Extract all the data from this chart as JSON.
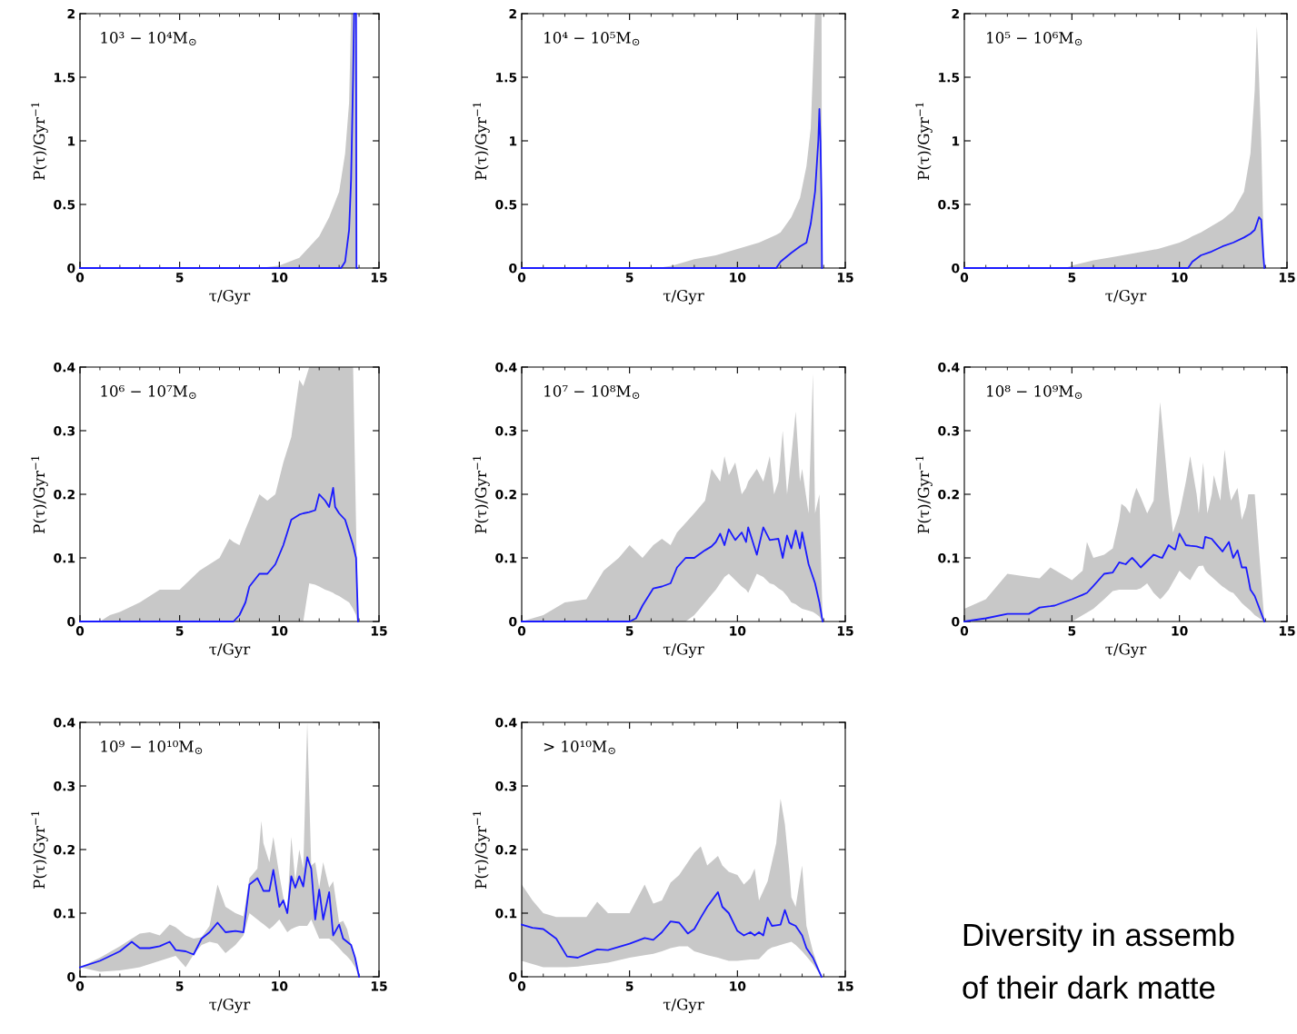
{
  "chart_data": [
    {
      "type": "line",
      "title": "10³ − 10⁴M$_{⊙}$",
      "xlabel": "τ/Gyr",
      "ylabel": "P(τ)/Gyr$^{−1}$",
      "xlim": [
        0,
        15
      ],
      "ylim": [
        0,
        2
      ],
      "xticks": [
        0,
        5,
        10,
        15
      ],
      "yticks": [
        0,
        0.5,
        1,
        1.5,
        2
      ],
      "grid": false,
      "legend": false,
      "series": [
        {
          "type": "line",
          "color": "#1a1aff",
          "x": [
            0,
            9,
            10,
            11,
            12,
            12.5,
            13,
            13.1,
            13.3,
            13.5,
            13.6,
            13.7,
            13.75,
            13.85,
            13.87,
            13.9
          ],
          "values": [
            0,
            0,
            0,
            0,
            0,
            0,
            0,
            0,
            0.05,
            0.3,
            0.7,
            1.5,
            2,
            2,
            0,
            0
          ],
          "lower": [
            0,
            0,
            0,
            0,
            0,
            0,
            0,
            0,
            0,
            0,
            0,
            0,
            0,
            0,
            0,
            0
          ],
          "upper": [
            0,
            0,
            0.02,
            0.08,
            0.25,
            0.4,
            0.6,
            0.7,
            0.9,
            1.3,
            2,
            2,
            2,
            2,
            0,
            0
          ]
        }
      ]
    },
    {
      "type": "line",
      "title": "10⁴ − 10⁵M$_{⊙}$",
      "xlabel": "τ/Gyr",
      "ylabel": "P(τ)/Gyr$^{−1}$",
      "xlim": [
        0,
        15
      ],
      "ylim": [
        0,
        2
      ],
      "xticks": [
        0,
        5,
        10,
        15
      ],
      "yticks": [
        0,
        0.5,
        1,
        1.5,
        2
      ],
      "grid": false,
      "legend": false,
      "series": [
        {
          "type": "line",
          "color": "#1a1aff",
          "x": [
            0,
            6.3,
            7,
            8,
            9,
            10,
            11,
            11.8,
            12,
            12.5,
            12.9,
            13.2,
            13.4,
            13.6,
            13.75,
            13.8,
            13.85,
            13.9,
            13.92
          ],
          "values": [
            0,
            0,
            0,
            0,
            0,
            0,
            0,
            0,
            0.05,
            0.12,
            0.17,
            0.2,
            0.35,
            0.6,
            1.0,
            1.25,
            1.0,
            0.5,
            0
          ],
          "lower": [
            0,
            0,
            0,
            0,
            0,
            0,
            0,
            0,
            0,
            0,
            0,
            0,
            0,
            0,
            0,
            0,
            0,
            0,
            0
          ],
          "upper": [
            0,
            0,
            0.02,
            0.07,
            0.1,
            0.15,
            0.2,
            0.26,
            0.28,
            0.4,
            0.55,
            0.8,
            1.1,
            2,
            2,
            2,
            2,
            2,
            0
          ]
        }
      ]
    },
    {
      "type": "line",
      "title": "10⁵ − 10⁶M$_{⊙}$",
      "xlabel": "τ/Gyr",
      "ylabel": "P(τ)/Gyr$^{−1}$",
      "xlim": [
        0,
        15
      ],
      "ylim": [
        0,
        2
      ],
      "xticks": [
        0,
        5,
        10,
        15
      ],
      "yticks": [
        0,
        0.5,
        1,
        1.5,
        2
      ],
      "grid": false,
      "legend": false,
      "series": [
        {
          "type": "line",
          "color": "#1a1aff",
          "x": [
            0,
            4.7,
            5,
            6,
            7,
            8,
            9,
            10,
            10.4,
            10.6,
            11,
            11.5,
            12,
            12.5,
            13,
            13.3,
            13.5,
            13.6,
            13.7,
            13.8,
            13.9,
            13.95
          ],
          "values": [
            0,
            0,
            0,
            0,
            0,
            0,
            0,
            0,
            0,
            0.05,
            0.1,
            0.13,
            0.17,
            0.2,
            0.24,
            0.27,
            0.3,
            0.35,
            0.4,
            0.38,
            0.1,
            0
          ],
          "lower": [
            0,
            0,
            0,
            0,
            0,
            0,
            0,
            0,
            0,
            0,
            0,
            0,
            0,
            0,
            0,
            0,
            0,
            0,
            0,
            0,
            0,
            0
          ],
          "upper": [
            0,
            0,
            0.02,
            0.06,
            0.09,
            0.12,
            0.15,
            0.2,
            0.23,
            0.25,
            0.28,
            0.33,
            0.38,
            0.45,
            0.6,
            0.9,
            1.4,
            1.9,
            1.5,
            1.0,
            0.3,
            0
          ]
        }
      ]
    },
    {
      "type": "line",
      "title": "10⁶ − 10⁷M$_{⊙}$",
      "xlabel": "τ/Gyr",
      "ylabel": "P(τ)/Gyr$^{−1}$",
      "xlim": [
        0,
        15
      ],
      "ylim": [
        0,
        0.4
      ],
      "xticks": [
        0,
        5,
        10,
        15
      ],
      "yticks": [
        0,
        0.1,
        0.2,
        0.3,
        0.4
      ],
      "grid": false,
      "legend": false,
      "series": [
        {
          "type": "line",
          "color": "#1a1aff",
          "x": [
            0,
            1,
            1.5,
            2,
            3,
            4,
            5,
            6,
            7,
            7.5,
            7.7,
            8,
            8.3,
            8.5,
            9,
            9.4,
            9.8,
            10.2,
            10.6,
            11,
            11.2,
            11.5,
            11.8,
            12,
            12.3,
            12.5,
            12.7,
            12.8,
            13,
            13.3,
            13.5,
            13.7,
            13.85,
            13.9,
            13.95
          ],
          "values": [
            0,
            0,
            0,
            0,
            0,
            0,
            0,
            0,
            0,
            0,
            0,
            0.01,
            0.03,
            0.055,
            0.075,
            0.075,
            0.09,
            0.12,
            0.16,
            0.168,
            0.17,
            0.172,
            0.175,
            0.2,
            0.19,
            0.18,
            0.21,
            0.18,
            0.17,
            0.16,
            0.14,
            0.12,
            0.1,
            0.05,
            0
          ],
          "lower": [
            0,
            0,
            0,
            0,
            0,
            0,
            0,
            0,
            0,
            0,
            0,
            0,
            0,
            0,
            0,
            0,
            0,
            0,
            0,
            0,
            0,
            0.06,
            0.058,
            0.055,
            0.05,
            0.048,
            0.045,
            0.043,
            0.04,
            0.034,
            0.03,
            0.02,
            0.01,
            0,
            0
          ],
          "upper": [
            0,
            0,
            0.01,
            0.015,
            0.03,
            0.05,
            0.05,
            0.08,
            0.1,
            0.13,
            0.125,
            0.12,
            0.145,
            0.16,
            0.2,
            0.19,
            0.2,
            0.25,
            0.29,
            0.38,
            0.37,
            0.4,
            0.4,
            0.4,
            0.4,
            0.4,
            0.4,
            0.4,
            0.4,
            0.4,
            0.4,
            0.4,
            0.15,
            0.06,
            0
          ]
        }
      ]
    },
    {
      "type": "line",
      "title": "10⁷ − 10⁸M$_{⊙}$",
      "xlabel": "τ/Gyr",
      "ylabel": "P(τ)/Gyr$^{−1}$",
      "xlim": [
        0,
        15
      ],
      "ylim": [
        0,
        0.4
      ],
      "xticks": [
        0,
        5,
        10,
        15
      ],
      "yticks": [
        0,
        0.1,
        0.2,
        0.3,
        0.4
      ],
      "grid": false,
      "legend": false,
      "series": [
        {
          "type": "line",
          "color": "#1a1aff",
          "x": [
            0,
            1,
            2,
            3,
            3.8,
            4.5,
            5,
            5.3,
            5.6,
            6.1,
            6.5,
            6.9,
            7.2,
            7.6,
            8,
            8.5,
            8.8,
            9,
            9.2,
            9.4,
            9.6,
            9.9,
            10.2,
            10.4,
            10.5,
            10.9,
            11.2,
            11.5,
            11.7,
            11.9,
            12.1,
            12.3,
            12.5,
            12.7,
            12.9,
            13.0,
            13.3,
            13.5,
            13.6,
            13.8,
            13.95
          ],
          "values": [
            0,
            0,
            0,
            0,
            0,
            0,
            0,
            0.005,
            0.025,
            0.052,
            0.055,
            0.06,
            0.085,
            0.1,
            0.1,
            0.112,
            0.118,
            0.125,
            0.138,
            0.12,
            0.145,
            0.128,
            0.14,
            0.125,
            0.148,
            0.105,
            0.148,
            0.128,
            0.129,
            0.13,
            0.1,
            0.135,
            0.115,
            0.143,
            0.115,
            0.14,
            0.09,
            0.07,
            0.06,
            0.03,
            0
          ],
          "lower": [
            0,
            0,
            0,
            0,
            0,
            0,
            0,
            0,
            0,
            0,
            0,
            0,
            0,
            0,
            0.01,
            0.03,
            0.042,
            0.05,
            0.06,
            0.07,
            0.075,
            0.065,
            0.055,
            0.05,
            0.045,
            0.075,
            0.07,
            0.06,
            0.058,
            0.052,
            0.048,
            0.04,
            0.03,
            0.027,
            0.022,
            0.02,
            0.017,
            0.015,
            0.013,
            0.008,
            0
          ],
          "upper": [
            0,
            0.01,
            0.03,
            0.035,
            0.08,
            0.1,
            0.12,
            0.11,
            0.1,
            0.12,
            0.13,
            0.12,
            0.14,
            0.155,
            0.17,
            0.19,
            0.24,
            0.23,
            0.22,
            0.26,
            0.23,
            0.25,
            0.2,
            0.21,
            0.22,
            0.24,
            0.22,
            0.26,
            0.2,
            0.22,
            0.3,
            0.2,
            0.26,
            0.33,
            0.22,
            0.24,
            0.17,
            0.39,
            0.17,
            0.2,
            0
          ]
        }
      ]
    },
    {
      "type": "line",
      "title": "10⁸ − 10⁹M$_{⊙}$",
      "xlabel": "τ/Gyr",
      "ylabel": "P(τ)/Gyr$^{−1}$",
      "xlim": [
        0,
        15
      ],
      "ylim": [
        0,
        0.4
      ],
      "xticks": [
        0,
        5,
        10,
        15
      ],
      "yticks": [
        0,
        0.1,
        0.2,
        0.3,
        0.4
      ],
      "grid": false,
      "legend": false,
      "series": [
        {
          "type": "line",
          "color": "#1a1aff",
          "x": [
            0,
            1,
            2,
            3,
            3.5,
            4,
            4.2,
            5,
            5.5,
            5.7,
            6,
            6.5,
            6.9,
            7.2,
            7.3,
            7.5,
            7.7,
            7.8,
            8,
            8.2,
            8.5,
            8.8,
            9.1,
            9.2,
            9.5,
            9.7,
            9.8,
            10.0,
            10.3,
            10.5,
            10.8,
            10.9,
            11.1,
            11.2,
            11.3,
            11.5,
            11.6,
            11.9,
            12,
            12.1,
            12.3,
            12.4,
            12.5,
            12.7,
            12.9,
            13.1,
            13.2,
            13.3,
            13.5,
            13.95
          ],
          "values": [
            0,
            0.005,
            0.012,
            0.012,
            0.022,
            0.024,
            0.025,
            0.035,
            0.042,
            0.045,
            0.056,
            0.075,
            0.077,
            0.093,
            0.092,
            0.09,
            0.097,
            0.1,
            0.093,
            0.085,
            0.095,
            0.105,
            0.101,
            0.1,
            0.12,
            0.115,
            0.113,
            0.138,
            0.12,
            0.119,
            0.118,
            0.117,
            0.115,
            0.133,
            0.132,
            0.13,
            0.126,
            0.114,
            0.11,
            0.115,
            0.125,
            0.112,
            0.1,
            0.112,
            0.085,
            0.085,
            0.068,
            0.05,
            0.04,
            0
          ],
          "lower": [
            0,
            0,
            0,
            0,
            0,
            0,
            0,
            0,
            0.01,
            0.014,
            0.02,
            0.035,
            0.048,
            0.05,
            0.05,
            0.05,
            0.05,
            0.05,
            0.05,
            0.052,
            0.06,
            0.045,
            0.035,
            0.038,
            0.05,
            0.062,
            0.068,
            0.08,
            0.07,
            0.065,
            0.083,
            0.087,
            0.088,
            0.08,
            0.076,
            0.07,
            0.067,
            0.058,
            0.055,
            0.053,
            0.048,
            0.046,
            0.045,
            0.037,
            0.029,
            0.023,
            0.02,
            0.017,
            0.01,
            0
          ],
          "upper": [
            0.02,
            0.035,
            0.075,
            0.07,
            0.068,
            0.085,
            0.081,
            0.065,
            0.08,
            0.125,
            0.1,
            0.105,
            0.115,
            0.16,
            0.185,
            0.18,
            0.17,
            0.19,
            0.21,
            0.195,
            0.17,
            0.19,
            0.345,
            0.31,
            0.2,
            0.14,
            0.15,
            0.17,
            0.22,
            0.26,
            0.2,
            0.17,
            0.25,
            0.21,
            0.17,
            0.2,
            0.23,
            0.19,
            0.23,
            0.27,
            0.21,
            0.19,
            0.197,
            0.21,
            0.16,
            0.18,
            0.2,
            0.2,
            0.2,
            0
          ]
        }
      ]
    },
    {
      "type": "line",
      "title": "10⁹ − 10¹⁰M$_{⊙}$",
      "xlabel": "τ/Gyr",
      "ylabel": "P(τ)/Gyr$^{−1}$",
      "xlim": [
        0,
        15
      ],
      "ylim": [
        0,
        0.4
      ],
      "xticks": [
        0,
        5,
        10,
        15
      ],
      "yticks": [
        0,
        0.1,
        0.2,
        0.3,
        0.4
      ],
      "grid": false,
      "legend": false,
      "series": [
        {
          "type": "line",
          "color": "#1a1aff",
          "x": [
            0,
            1,
            2,
            2.6,
            3,
            3.5,
            4,
            4.5,
            4.8,
            5.3,
            5.7,
            6.1,
            6.5,
            6.9,
            7.3,
            7.8,
            8.2,
            8.5,
            8.9,
            9.1,
            9.2,
            9.5,
            9.7,
            10,
            10.2,
            10.4,
            10.6,
            10.8,
            11.0,
            11.2,
            11.4,
            11.6,
            11.8,
            12.0,
            12.2,
            12.5,
            12.7,
            13.0,
            13.2,
            13.4,
            13.6,
            13.8,
            14.0
          ],
          "values": [
            0.015,
            0.025,
            0.04,
            0.055,
            0.045,
            0.045,
            0.048,
            0.055,
            0.042,
            0.04,
            0.035,
            0.06,
            0.07,
            0.085,
            0.07,
            0.072,
            0.07,
            0.145,
            0.155,
            0.142,
            0.135,
            0.135,
            0.168,
            0.11,
            0.12,
            0.1,
            0.158,
            0.14,
            0.158,
            0.142,
            0.188,
            0.17,
            0.09,
            0.137,
            0.09,
            0.133,
            0.065,
            0.082,
            0.06,
            0.055,
            0.05,
            0.03,
            0
          ],
          "lower": [
            0.015,
            0.008,
            0.01,
            0.013,
            0.015,
            0.02,
            0.025,
            0.03,
            0.033,
            0.015,
            0.035,
            0.05,
            0.055,
            0.052,
            0.037,
            0.05,
            0.065,
            0.1,
            0.09,
            0.085,
            0.083,
            0.075,
            0.08,
            0.09,
            0.08,
            0.07,
            0.075,
            0.078,
            0.08,
            0.08,
            0.08,
            0.09,
            0.075,
            0.06,
            0.06,
            0.06,
            0.055,
            0.045,
            0.038,
            0.032,
            0.025,
            0.015,
            0
          ],
          "upper": [
            0.015,
            0.03,
            0.048,
            0.06,
            0.068,
            0.07,
            0.065,
            0.082,
            0.078,
            0.065,
            0.06,
            0.062,
            0.08,
            0.145,
            0.11,
            0.1,
            0.095,
            0.155,
            0.17,
            0.245,
            0.21,
            0.18,
            0.22,
            0.16,
            0.125,
            0.105,
            0.22,
            0.15,
            0.2,
            0.17,
            0.4,
            0.175,
            0.18,
            0.14,
            0.18,
            0.14,
            0.15,
            0.085,
            0.088,
            0.075,
            0.05,
            0.03,
            0
          ]
        }
      ]
    },
    {
      "type": "line",
      "title": "> 10¹⁰M$_{⊙}$",
      "xlabel": "τ/Gyr",
      "ylabel": "P(τ)/Gyr$^{−1}$",
      "xlim": [
        0,
        15
      ],
      "ylim": [
        0,
        0.4
      ],
      "xticks": [
        0,
        5,
        10,
        15
      ],
      "yticks": [
        0,
        0.1,
        0.2,
        0.3,
        0.4
      ],
      "grid": false,
      "legend": false,
      "annotations": [
        "Diversity in assemb",
        "of their dark matte"
      ],
      "series": [
        {
          "type": "line",
          "color": "#1a1aff",
          "x": [
            0,
            0.5,
            1,
            1.6,
            2.1,
            2.6,
            3,
            3.5,
            4,
            5,
            5.7,
            6.1,
            6.5,
            6.9,
            7.3,
            7.7,
            8,
            8.3,
            8.6,
            9.1,
            9.3,
            9.6,
            10,
            10.3,
            10.6,
            10.8,
            11,
            11.2,
            11.4,
            11.6,
            11.8,
            12,
            12.2,
            12.4,
            12.5,
            12.7,
            13,
            13.2,
            13.5,
            13.9
          ],
          "values": [
            0.082,
            0.077,
            0.075,
            0.06,
            0.032,
            0.03,
            0.036,
            0.043,
            0.042,
            0.052,
            0.061,
            0.058,
            0.07,
            0.087,
            0.085,
            0.068,
            0.075,
            0.093,
            0.11,
            0.133,
            0.11,
            0.1,
            0.072,
            0.065,
            0.07,
            0.065,
            0.07,
            0.065,
            0.093,
            0.08,
            0.081,
            0.082,
            0.105,
            0.085,
            0.083,
            0.08,
            0.065,
            0.045,
            0.03,
            0
          ],
          "lower": [
            0.025,
            0.02,
            0.015,
            0.015,
            0.015,
            0.016,
            0.018,
            0.02,
            0.022,
            0.03,
            0.034,
            0.036,
            0.04,
            0.045,
            0.048,
            0.048,
            0.04,
            0.037,
            0.034,
            0.03,
            0.028,
            0.025,
            0.025,
            0.026,
            0.027,
            0.027,
            0.028,
            0.035,
            0.042,
            0.046,
            0.048,
            0.05,
            0.052,
            0.054,
            0.055,
            0.05,
            0.04,
            0.032,
            0.02,
            0
          ],
          "upper": [
            0.145,
            0.12,
            0.1,
            0.094,
            0.094,
            0.094,
            0.094,
            0.118,
            0.1,
            0.1,
            0.145,
            0.115,
            0.12,
            0.148,
            0.16,
            0.18,
            0.195,
            0.205,
            0.175,
            0.19,
            0.175,
            0.165,
            0.16,
            0.145,
            0.155,
            0.17,
            0.12,
            0.135,
            0.15,
            0.18,
            0.21,
            0.28,
            0.24,
            0.17,
            0.125,
            0.11,
            0.175,
            0.08,
            0.04,
            0
          ]
        }
      ]
    }
  ]
}
